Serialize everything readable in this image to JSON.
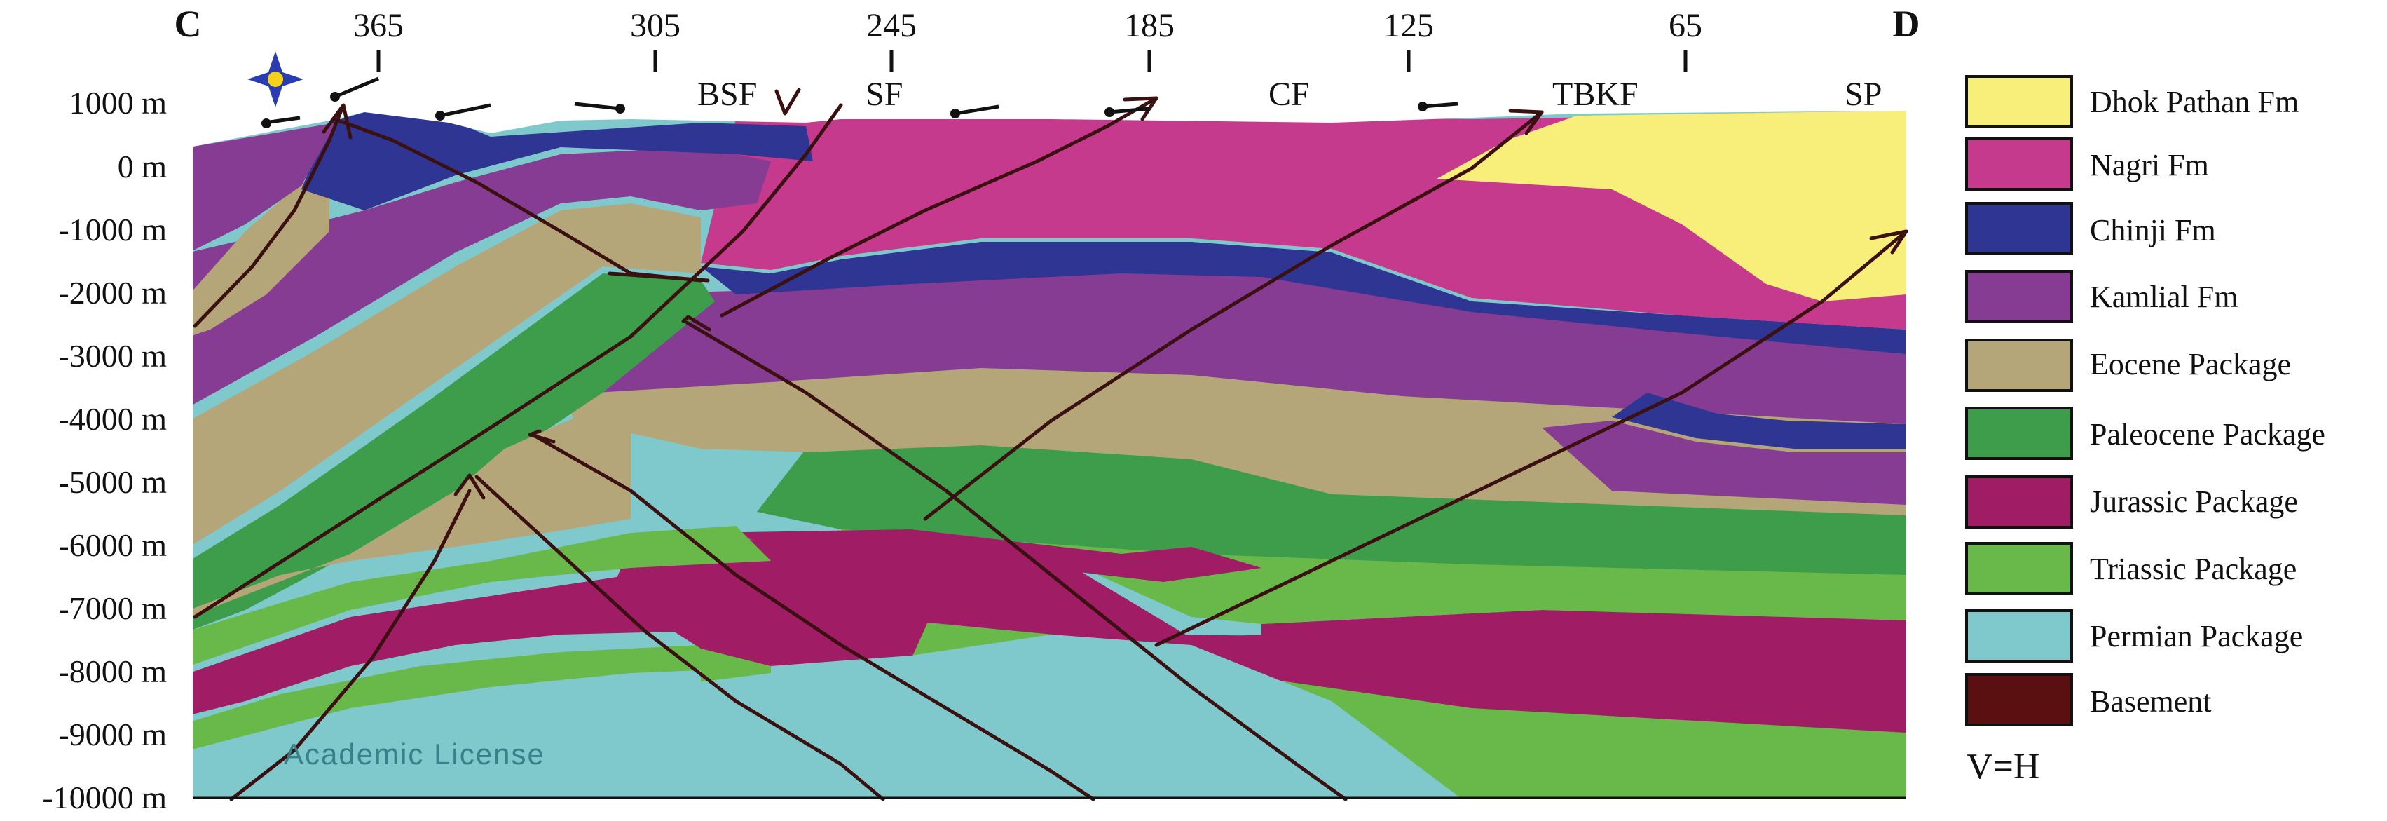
{
  "section": {
    "start_label": "C",
    "end_label": "D",
    "distance_ticks": [
      "365",
      "305",
      "245",
      "185",
      "125",
      "65"
    ],
    "depth_ticks": [
      "1000 m",
      "0 m",
      "-1000 m",
      "-2000 m",
      "-3000 m",
      "-4000 m",
      "-5000 m",
      "-6000 m",
      "-7000 m",
      "-8000 m",
      "-9000 m",
      "-10000 m"
    ],
    "faults": [
      "BSF",
      "SF",
      "CF",
      "TBKF",
      "SP"
    ],
    "watermark": "Academic License",
    "scale_note": "V=H",
    "compass": "compass-star-icon"
  },
  "legend": [
    {
      "name": "Dhok Pathan Fm",
      "color": "#f7ef7a"
    },
    {
      "name": "Nagri Fm",
      "color": "#c63a8e"
    },
    {
      "name": "Chinji Fm",
      "color": "#2e3592"
    },
    {
      "name": "Kamlial Fm",
      "color": "#873c93"
    },
    {
      "name": "Eocene Package",
      "color": "#b5a67a"
    },
    {
      "name": "Paleocene Package",
      "color": "#3e9d4b"
    },
    {
      "name": "Jurassic Package",
      "color": "#a01c65"
    },
    {
      "name": "Triassic Package",
      "color": "#69b94a"
    },
    {
      "name": "Permian Package",
      "color": "#7fc9cc"
    },
    {
      "name": "Basement",
      "color": "#5a1010"
    }
  ]
}
